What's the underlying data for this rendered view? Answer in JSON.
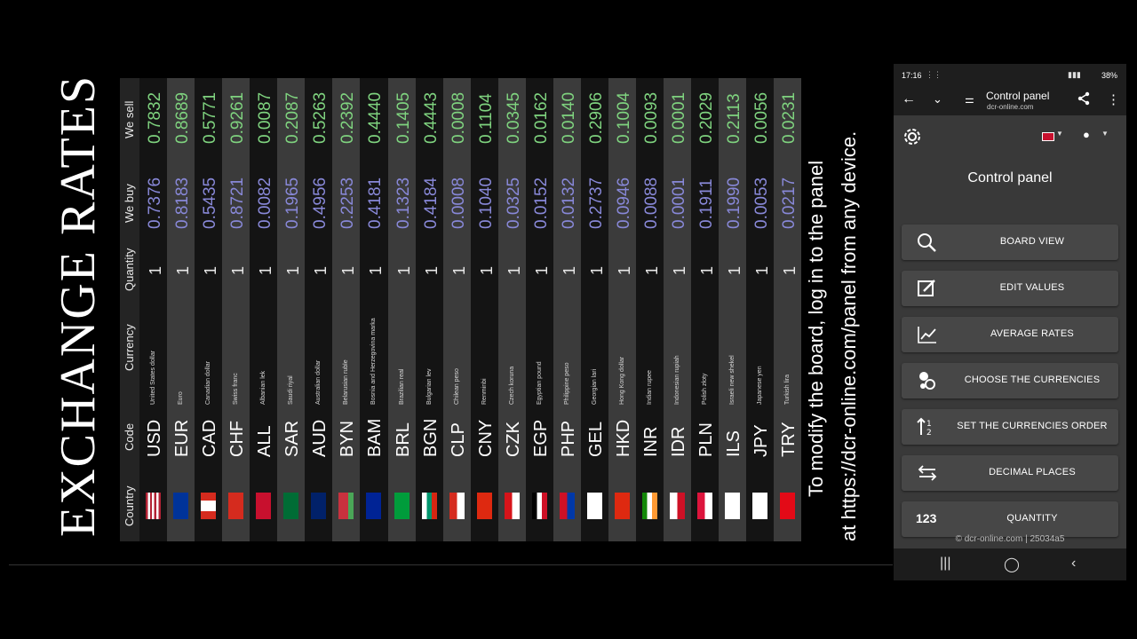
{
  "board": {
    "title": "EXCHANGE RATES",
    "headers": {
      "country": "Country",
      "code": "Code",
      "currency": "Currency",
      "quantity": "Quantity",
      "we_buy": "We buy",
      "we_sell": "We sell"
    },
    "rows": [
      {
        "code": "USD",
        "name": "United States dollar",
        "qty": "1",
        "buy": "0.7376",
        "sell": "0.7832"
      },
      {
        "code": "EUR",
        "name": "Euro",
        "qty": "1",
        "buy": "0.8183",
        "sell": "0.8689"
      },
      {
        "code": "CAD",
        "name": "Canadian dollar",
        "qty": "1",
        "buy": "0.5435",
        "sell": "0.5771"
      },
      {
        "code": "CHF",
        "name": "Swiss franc",
        "qty": "1",
        "buy": "0.8721",
        "sell": "0.9261"
      },
      {
        "code": "ALL",
        "name": "Albanian lek",
        "qty": "1",
        "buy": "0.0082",
        "sell": "0.0087"
      },
      {
        "code": "SAR",
        "name": "Saudi riyal",
        "qty": "1",
        "buy": "0.1965",
        "sell": "0.2087"
      },
      {
        "code": "AUD",
        "name": "Australian dollar",
        "qty": "1",
        "buy": "0.4956",
        "sell": "0.5263"
      },
      {
        "code": "BYN",
        "name": "Belarusian ruble",
        "qty": "1",
        "buy": "0.2253",
        "sell": "0.2392"
      },
      {
        "code": "BAM",
        "name": "Bosnia and Herzegovina marka",
        "qty": "1",
        "buy": "0.4181",
        "sell": "0.4440"
      },
      {
        "code": "BRL",
        "name": "Brazilian real",
        "qty": "1",
        "buy": "0.1323",
        "sell": "0.1405"
      },
      {
        "code": "BGN",
        "name": "Bulgarian lev",
        "qty": "1",
        "buy": "0.4184",
        "sell": "0.4443"
      },
      {
        "code": "CLP",
        "name": "Chilean peso",
        "qty": "1",
        "buy": "0.0008",
        "sell": "0.0008"
      },
      {
        "code": "CNY",
        "name": "Renminbi",
        "qty": "1",
        "buy": "0.1040",
        "sell": "0.1104"
      },
      {
        "code": "CZK",
        "name": "Czech koruna",
        "qty": "1",
        "buy": "0.0325",
        "sell": "0.0345"
      },
      {
        "code": "EGP",
        "name": "Egyptian pound",
        "qty": "1",
        "buy": "0.0152",
        "sell": "0.0162"
      },
      {
        "code": "PHP",
        "name": "Philippine peso",
        "qty": "1",
        "buy": "0.0132",
        "sell": "0.0140"
      },
      {
        "code": "GEL",
        "name": "Georgian lari",
        "qty": "1",
        "buy": "0.2737",
        "sell": "0.2906"
      },
      {
        "code": "HKD",
        "name": "Hong Kong dollar",
        "qty": "1",
        "buy": "0.0946",
        "sell": "0.1004"
      },
      {
        "code": "INR",
        "name": "Indian rupee",
        "qty": "1",
        "buy": "0.0088",
        "sell": "0.0093"
      },
      {
        "code": "IDR",
        "name": "Indonesian rupiah",
        "qty": "1",
        "buy": "0.0001",
        "sell": "0.0001"
      },
      {
        "code": "PLN",
        "name": "Polish złoty",
        "qty": "1",
        "buy": "0.1911",
        "sell": "0.2029"
      },
      {
        "code": "ILS",
        "name": "Israeli new shekel",
        "qty": "1",
        "buy": "0.1990",
        "sell": "0.2113"
      },
      {
        "code": "JPY",
        "name": "Japanese yen",
        "qty": "1",
        "buy": "0.0053",
        "sell": "0.0056"
      },
      {
        "code": "TRY",
        "name": "Turkish lira",
        "qty": "1",
        "buy": "0.0217",
        "sell": "0.0231"
      }
    ]
  },
  "instructions": {
    "line1": "To modify the board, log in to the panel",
    "line2": "at https://dcr-online.com/panel from any device."
  },
  "phone": {
    "status": {
      "time": "17:16",
      "battery": "38%"
    },
    "appbar": {
      "title": "Control panel",
      "url": "dcr-online.com"
    },
    "panel_title": "Control panel",
    "menu": [
      {
        "label": "BOARD VIEW",
        "icon": "search-icon"
      },
      {
        "label": "EDIT VALUES",
        "icon": "edit-icon"
      },
      {
        "label": "AVERAGE RATES",
        "icon": "chart-line-icon"
      },
      {
        "label": "CHOOSE THE CURRENCIES",
        "icon": "toggle-icon"
      },
      {
        "label": "SET THE CURRENCIES ORDER",
        "icon": "sort-icon"
      },
      {
        "label": "DECIMAL PLACES",
        "icon": "swap-arrows-icon"
      },
      {
        "label": "QUANTITY",
        "icon": "number-icon",
        "icon_text": "123"
      }
    ],
    "footer": "© dcr-online.com | 25034a5"
  },
  "colors": {
    "sell": "#7fd37f",
    "buy": "#8888d8",
    "panel_bg": "#393939",
    "button_bg": "#474747"
  }
}
